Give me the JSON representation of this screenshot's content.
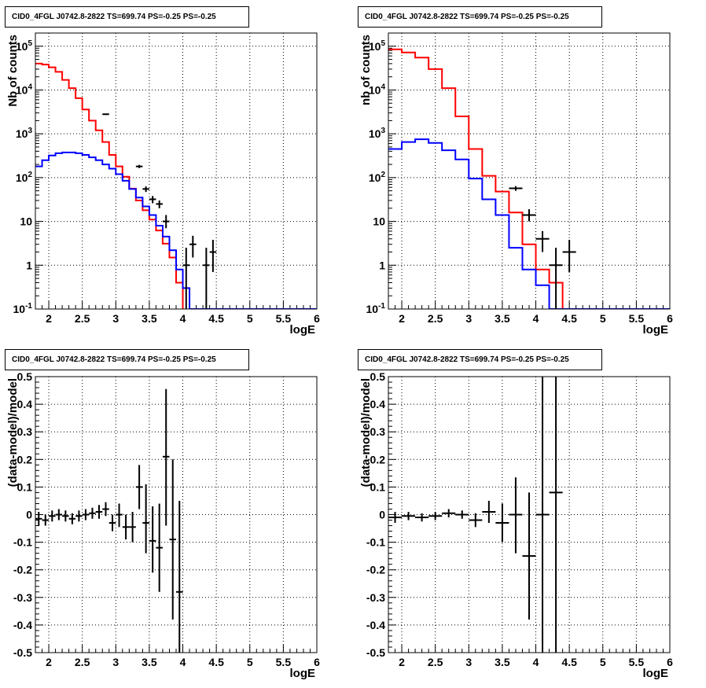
{
  "colors": {
    "model_total": "#ff0000",
    "model_source": "#0000ff",
    "data": "#000000",
    "grid": "#000000"
  },
  "chart_data": [
    {
      "id": "top-left",
      "type": "line",
      "title": "CID0_4FGL J0742.8-2822 TS=699.74 PS=-0.25 PS=-0.25",
      "xlabel": "logE",
      "ylabel": "Nb of counts",
      "xlim": [
        1.8,
        6
      ],
      "ylim": [
        0.1,
        200000
      ],
      "yscale": "log",
      "grid": true,
      "xticks": [
        2,
        2.5,
        3,
        3.5,
        4,
        4.5,
        5,
        5.5,
        6
      ],
      "xtick_labels": [
        "2",
        "2.5",
        "3",
        "3.5",
        "4",
        "4.5",
        "5",
        "5.5",
        "6"
      ],
      "yticks": [
        0.1,
        1,
        10,
        100,
        1000,
        10000,
        100000
      ],
      "ytick_labels": [
        "10^-1",
        "1",
        "10",
        "10^2",
        "10^3",
        "10^4",
        "10^5"
      ],
      "bin_edges": [
        1.8,
        1.9,
        2.0,
        2.1,
        2.2,
        2.3,
        2.4,
        2.5,
        2.6,
        2.7,
        2.8,
        2.9,
        3.0,
        3.1,
        3.2,
        3.3,
        3.4,
        3.5,
        3.6,
        3.7,
        3.8,
        3.9,
        4.0,
        4.1,
        4.2,
        4.3,
        4.4,
        4.5,
        4.6,
        4.7,
        4.8,
        4.9,
        5.0,
        5.1,
        5.2,
        5.3,
        5.4,
        5.5,
        5.6,
        5.7,
        5.8,
        5.9,
        6.0
      ],
      "series": [
        {
          "role": "model_total",
          "style": "step",
          "values": [
            40000,
            38000,
            33000,
            26000,
            17000,
            11000,
            6500,
            3600,
            2000,
            1200,
            650,
            330,
            180,
            105,
            56,
            30,
            18,
            11,
            6.2,
            3.1,
            1.5,
            0.4,
            0.05,
            0.05,
            0.05,
            0.05,
            0.05,
            0.05,
            0.05,
            0.05,
            0.05,
            0.05,
            0.05,
            0.05,
            0.05,
            0.05,
            0.05,
            0.05,
            0.05,
            0.05,
            0.1,
            0.1
          ]
        },
        {
          "role": "model_source",
          "style": "step",
          "values": [
            180,
            250,
            320,
            360,
            375,
            375,
            360,
            330,
            290,
            250,
            200,
            160,
            120,
            85,
            55,
            35,
            22,
            14,
            8,
            4.5,
            2.2,
            0.8,
            0.3,
            0.1,
            0.1,
            0.1,
            0.1,
            0.1,
            0.1,
            0.1,
            0.1,
            0.1,
            0.1,
            0.1,
            0.1,
            0.1,
            0.1,
            0.1,
            0.1,
            0.1,
            0.1,
            0.1
          ]
        }
      ],
      "points": [
        {
          "x": 2.85,
          "y": 2800,
          "xerr": 0.05,
          "ylo": 2700,
          "yhi": 2900
        },
        {
          "x": 3.35,
          "y": 180,
          "xerr": 0.05,
          "ylo": 165,
          "yhi": 195
        },
        {
          "x": 3.45,
          "y": 55,
          "xerr": 0.05,
          "ylo": 47,
          "yhi": 63
        },
        {
          "x": 3.55,
          "y": 32,
          "xerr": 0.05,
          "ylo": 26,
          "yhi": 38
        },
        {
          "x": 3.65,
          "y": 25,
          "xerr": 0.05,
          "ylo": 20,
          "yhi": 30
        },
        {
          "x": 3.75,
          "y": 10,
          "xerr": 0.05,
          "ylo": 7,
          "yhi": 14
        },
        {
          "x": 4.05,
          "y": 1,
          "xerr": 0.05,
          "ylo": 0.05,
          "yhi": 2.5
        },
        {
          "x": 4.15,
          "y": 3,
          "xerr": 0.05,
          "ylo": 1.5,
          "yhi": 4.7
        },
        {
          "x": 4.35,
          "y": 1,
          "xerr": 0.05,
          "ylo": 0.05,
          "yhi": 2.5
        },
        {
          "x": 4.45,
          "y": 2,
          "xerr": 0.05,
          "ylo": 0.7,
          "yhi": 3.8
        }
      ]
    },
    {
      "id": "top-right",
      "type": "line",
      "title": "CID0_4FGL J0742.8-2822 TS=699.74 PS=-0.25 PS=-0.25",
      "xlabel": "logE",
      "ylabel": "nb of counts",
      "xlim": [
        1.8,
        6
      ],
      "ylim": [
        0.1,
        200000
      ],
      "yscale": "log",
      "grid": true,
      "xticks": [
        2,
        2.5,
        3,
        3.5,
        4,
        4.5,
        5,
        5.5,
        6
      ],
      "xtick_labels": [
        "2",
        "2.5",
        "3",
        "3.5",
        "4",
        "4.5",
        "5",
        "5.5",
        "6"
      ],
      "yticks": [
        0.1,
        1,
        10,
        100,
        1000,
        10000,
        100000
      ],
      "ytick_labels": [
        "10^-1",
        "1",
        "10",
        "10^2",
        "10^3",
        "10^4",
        "10^5"
      ],
      "bin_edges": [
        1.8,
        2.0,
        2.2,
        2.4,
        2.6,
        2.8,
        3.0,
        3.2,
        3.4,
        3.6,
        3.8,
        4.0,
        4.2,
        4.4,
        4.6,
        4.8,
        5.0,
        5.2,
        5.4,
        5.6,
        5.8,
        6.0
      ],
      "series": [
        {
          "role": "model_total",
          "style": "step",
          "values": [
            85000,
            72000,
            55000,
            30000,
            11000,
            2500,
            450,
            110,
            48,
            16,
            3,
            0.8,
            0.4,
            0.05,
            0.05,
            0.05,
            0.05,
            0.05,
            0.05,
            0.05,
            0.1
          ]
        },
        {
          "role": "model_source",
          "style": "step",
          "values": [
            450,
            650,
            750,
            620,
            420,
            260,
            95,
            32,
            14,
            2.5,
            0.8,
            0.35,
            0.1,
            0.1,
            0.1,
            0.1,
            0.1,
            0.1,
            0.1,
            0.1,
            0.1
          ]
        }
      ],
      "points": [
        {
          "x": 3.7,
          "y": 57,
          "xerr": 0.1,
          "ylo": 50,
          "yhi": 64
        },
        {
          "x": 3.9,
          "y": 14,
          "xerr": 0.1,
          "ylo": 10,
          "yhi": 19
        },
        {
          "x": 4.1,
          "y": 4,
          "xerr": 0.1,
          "ylo": 2,
          "yhi": 6
        },
        {
          "x": 4.3,
          "y": 1,
          "xerr": 0.1,
          "ylo": 0.05,
          "yhi": 2.5
        },
        {
          "x": 4.5,
          "y": 2,
          "xerr": 0.1,
          "ylo": 0.7,
          "yhi": 3.8
        }
      ]
    },
    {
      "id": "bottom-left",
      "type": "scatter",
      "title": "CID0_4FGL J0742.8-2822 TS=699.74 PS=-0.25 PS=-0.25",
      "xlabel": "logE",
      "ylabel": "(data-model)/model",
      "xlim": [
        1.8,
        6
      ],
      "ylim": [
        -0.5,
        0.5
      ],
      "yscale": "linear",
      "grid": true,
      "xticks": [
        2,
        2.5,
        3,
        3.5,
        4,
        4.5,
        5,
        5.5,
        6
      ],
      "xtick_labels": [
        "2",
        "2.5",
        "3",
        "3.5",
        "4",
        "4.5",
        "5",
        "5.5",
        "6"
      ],
      "yticks": [
        -0.5,
        -0.4,
        -0.3,
        -0.2,
        -0.1,
        0,
        0.1,
        0.2,
        0.3,
        0.4,
        0.5
      ],
      "ytick_labels": [
        "-0.5",
        "-0.4",
        "-0.3",
        "-0.2",
        "-0.1",
        "0",
        "0.1",
        "0.2",
        "0.3",
        "0.4",
        "0.5"
      ],
      "points": [
        {
          "x": 1.85,
          "y": -0.015,
          "xerr": 0.05,
          "ylo": -0.04,
          "yhi": 0.01
        },
        {
          "x": 1.95,
          "y": -0.02,
          "xerr": 0.05,
          "ylo": -0.04,
          "yhi": 0.0
        },
        {
          "x": 2.05,
          "y": -0.005,
          "xerr": 0.05,
          "ylo": -0.025,
          "yhi": 0.015
        },
        {
          "x": 2.15,
          "y": 0.0,
          "xerr": 0.05,
          "ylo": -0.02,
          "yhi": 0.02
        },
        {
          "x": 2.25,
          "y": -0.005,
          "xerr": 0.05,
          "ylo": -0.025,
          "yhi": 0.015
        },
        {
          "x": 2.35,
          "y": -0.015,
          "xerr": 0.05,
          "ylo": -0.035,
          "yhi": 0.005
        },
        {
          "x": 2.45,
          "y": -0.005,
          "xerr": 0.05,
          "ylo": -0.025,
          "yhi": 0.015
        },
        {
          "x": 2.55,
          "y": 0.0,
          "xerr": 0.05,
          "ylo": -0.02,
          "yhi": 0.02
        },
        {
          "x": 2.65,
          "y": 0.005,
          "xerr": 0.05,
          "ylo": -0.015,
          "yhi": 0.025
        },
        {
          "x": 2.75,
          "y": 0.01,
          "xerr": 0.05,
          "ylo": -0.015,
          "yhi": 0.035
        },
        {
          "x": 2.85,
          "y": 0.02,
          "xerr": 0.05,
          "ylo": -0.005,
          "yhi": 0.045
        },
        {
          "x": 2.95,
          "y": -0.03,
          "xerr": 0.05,
          "ylo": -0.06,
          "yhi": 0.0
        },
        {
          "x": 3.05,
          "y": 0.0,
          "xerr": 0.05,
          "ylo": -0.045,
          "yhi": 0.04
        },
        {
          "x": 3.15,
          "y": -0.045,
          "xerr": 0.05,
          "ylo": -0.09,
          "yhi": 0.0
        },
        {
          "x": 3.25,
          "y": -0.045,
          "xerr": 0.05,
          "ylo": -0.1,
          "yhi": 0.01
        },
        {
          "x": 3.35,
          "y": 0.1,
          "xerr": 0.05,
          "ylo": 0.02,
          "yhi": 0.18
        },
        {
          "x": 3.45,
          "y": -0.03,
          "xerr": 0.05,
          "ylo": -0.14,
          "yhi": 0.11
        },
        {
          "x": 3.55,
          "y": -0.095,
          "xerr": 0.05,
          "ylo": -0.21,
          "yhi": 0.03
        },
        {
          "x": 3.65,
          "y": -0.12,
          "xerr": 0.05,
          "ylo": -0.28,
          "yhi": 0.04
        },
        {
          "x": 3.75,
          "y": 0.21,
          "xerr": 0.05,
          "ylo": -0.04,
          "yhi": 0.455
        },
        {
          "x": 3.85,
          "y": -0.09,
          "xerr": 0.05,
          "ylo": -0.38,
          "yhi": 0.2
        },
        {
          "x": 3.95,
          "y": -0.28,
          "xerr": 0.05,
          "ylo": -0.6,
          "yhi": 0.05
        }
      ]
    },
    {
      "id": "bottom-right",
      "type": "scatter",
      "title": "CID0_4FGL J0742.8-2822 TS=699.74 PS=-0.25 PS=-0.25",
      "xlabel": "logE",
      "ylabel": "(data-model)/model",
      "xlim": [
        1.8,
        6
      ],
      "ylim": [
        -0.5,
        0.5
      ],
      "yscale": "linear",
      "grid": true,
      "xticks": [
        2,
        2.5,
        3,
        3.5,
        4,
        4.5,
        5,
        5.5,
        6
      ],
      "xtick_labels": [
        "2",
        "2.5",
        "3",
        "3.5",
        "4",
        "4.5",
        "5",
        "5.5",
        "6"
      ],
      "yticks": [
        -0.5,
        -0.4,
        -0.3,
        -0.2,
        -0.1,
        0,
        0.1,
        0.2,
        0.3,
        0.4,
        0.5
      ],
      "ytick_labels": [
        "-0.5",
        "-0.4",
        "-0.3",
        "-0.2",
        "-0.1",
        "0",
        "0.1",
        "0.2",
        "0.3",
        "0.4",
        "0.5"
      ],
      "points": [
        {
          "x": 1.9,
          "y": -0.01,
          "xerr": 0.1,
          "ylo": -0.03,
          "yhi": 0.01
        },
        {
          "x": 2.1,
          "y": -0.005,
          "xerr": 0.1,
          "ylo": -0.02,
          "yhi": 0.01
        },
        {
          "x": 2.3,
          "y": -0.01,
          "xerr": 0.1,
          "ylo": -0.025,
          "yhi": 0.005
        },
        {
          "x": 2.5,
          "y": -0.005,
          "xerr": 0.1,
          "ylo": -0.02,
          "yhi": 0.01
        },
        {
          "x": 2.7,
          "y": 0.005,
          "xerr": 0.1,
          "ylo": -0.01,
          "yhi": 0.02
        },
        {
          "x": 2.9,
          "y": 0.0,
          "xerr": 0.1,
          "ylo": -0.015,
          "yhi": 0.015
        },
        {
          "x": 3.1,
          "y": -0.02,
          "xerr": 0.1,
          "ylo": -0.045,
          "yhi": 0.005
        },
        {
          "x": 3.3,
          "y": 0.01,
          "xerr": 0.1,
          "ylo": -0.03,
          "yhi": 0.05
        },
        {
          "x": 3.5,
          "y": -0.03,
          "xerr": 0.1,
          "ylo": -0.1,
          "yhi": 0.04
        },
        {
          "x": 3.7,
          "y": 0.0,
          "xerr": 0.1,
          "ylo": -0.14,
          "yhi": 0.135
        },
        {
          "x": 3.9,
          "y": -0.15,
          "xerr": 0.1,
          "ylo": -0.38,
          "yhi": 0.08
        },
        {
          "x": 4.1,
          "y": 0.0,
          "xerr": 0.1,
          "ylo": -0.7,
          "yhi": 0.7
        },
        {
          "x": 4.3,
          "y": 0.08,
          "xerr": 0.1,
          "ylo": -0.7,
          "yhi": 0.7
        }
      ]
    }
  ]
}
